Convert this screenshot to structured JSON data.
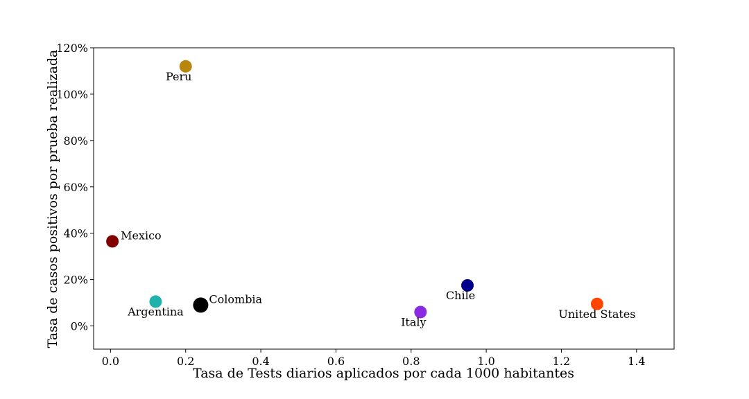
{
  "chart_data": {
    "type": "scatter",
    "title": "",
    "xlabel": "Tasa de Tests diarios aplicados por cada 1000 habitantes",
    "ylabel": "Tasa de casos positivos por prueba realizada",
    "xlim": [
      -0.045,
      1.5
    ],
    "ylim": [
      -10,
      120
    ],
    "xticks": [
      0.0,
      0.2,
      0.4,
      0.6,
      0.8,
      1.0,
      1.2,
      1.4
    ],
    "xtick_labels": [
      "0.0",
      "0.2",
      "0.4",
      "0.6",
      "0.8",
      "1.0",
      "1.2",
      "1.4"
    ],
    "yticks": [
      0,
      20,
      40,
      60,
      80,
      100,
      120
    ],
    "ytick_labels": [
      "0%",
      "20%",
      "40%",
      "60%",
      "80%",
      "100%",
      "120%"
    ],
    "grid": false,
    "points": [
      {
        "label": "Peru",
        "x": 0.2,
        "y": 112,
        "color": "#b8860b",
        "label_pos": "below-left"
      },
      {
        "label": "Mexico",
        "x": 0.005,
        "y": 36.5,
        "color": "#800000",
        "label_pos": "right"
      },
      {
        "label": "Argentina",
        "x": 0.12,
        "y": 10.5,
        "color": "#20b2aa",
        "label_pos": "below"
      },
      {
        "label": "Colombia",
        "x": 0.24,
        "y": 9,
        "color": "#000000",
        "label_pos": "right",
        "large": true
      },
      {
        "label": "Italy",
        "x": 0.825,
        "y": 6,
        "color": "#8a2be2",
        "label_pos": "below-left"
      },
      {
        "label": "Chile",
        "x": 0.95,
        "y": 17.5,
        "color": "#00008b",
        "label_pos": "below-left"
      },
      {
        "label": "United States",
        "x": 1.295,
        "y": 9.5,
        "color": "#ff4500",
        "label_pos": "below"
      }
    ]
  }
}
